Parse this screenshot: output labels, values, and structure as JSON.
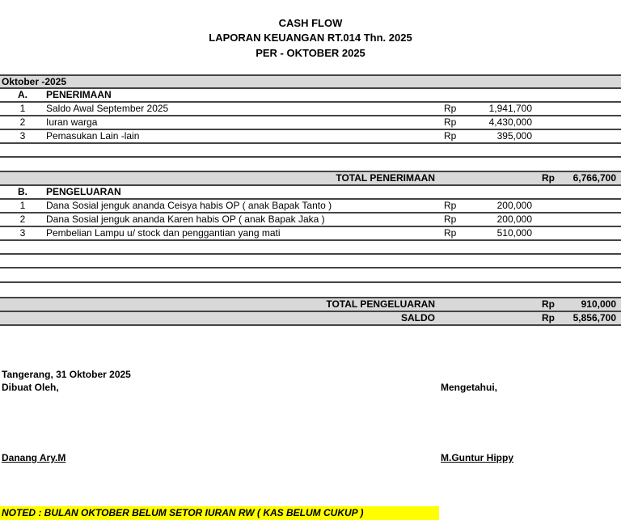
{
  "header": {
    "title": "CASH FLOW",
    "subtitle": "LAPORAN KEUANGAN  RT.014 Thn. 2025",
    "period": "PER - OKTOBER  2025"
  },
  "month_label": "Oktober -2025",
  "currency": "Rp",
  "penerimaan": {
    "code": "A.",
    "label": "PENERIMAAN",
    "items": [
      {
        "no": "1",
        "desc": "Saldo Awal September 2025",
        "amount": "1,941,700"
      },
      {
        "no": "2",
        "desc": "Iuran warga",
        "amount": "4,430,000"
      },
      {
        "no": "3",
        "desc": "Pemasukan Lain -lain",
        "amount": "395,000"
      }
    ],
    "total_label": "TOTAL PENERIMAAN",
    "total": "6,766,700"
  },
  "pengeluaran": {
    "code": "B.",
    "label": "PENGELUARAN",
    "items": [
      {
        "no": "1",
        "desc": "Dana Sosial jenguk ananda Ceisya habis OP ( anak Bapak Tanto )",
        "amount": "200,000"
      },
      {
        "no": "2",
        "desc": "Dana Sosial jenguk ananda Karen habis OP ( anak Bapak Jaka )",
        "amount": "200,000"
      },
      {
        "no": "3",
        "desc": "Pembelian Lampu u/ stock dan penggantian  yang mati",
        "amount": "510,000"
      }
    ],
    "total_label": "TOTAL PENGELUARAN",
    "total": "910,000"
  },
  "saldo": {
    "label": "SALDO",
    "amount": "5,856,700"
  },
  "footer": {
    "place_date": "Tangerang, 31 Oktober 2025",
    "made_by_label": "Dibuat Oleh,",
    "acknowledged_label": "Mengetahui,",
    "made_by_name": "Danang Ary.M",
    "acknowledged_name": "M.Guntur Hippy"
  },
  "note": "NOTED : BULAN OKTOBER BELUM SETOR IURAN RW ( KAS BELUM CUKUP )",
  "colors": {
    "total_bg": "#d9d9d9",
    "note_bg": "#ffff00"
  }
}
